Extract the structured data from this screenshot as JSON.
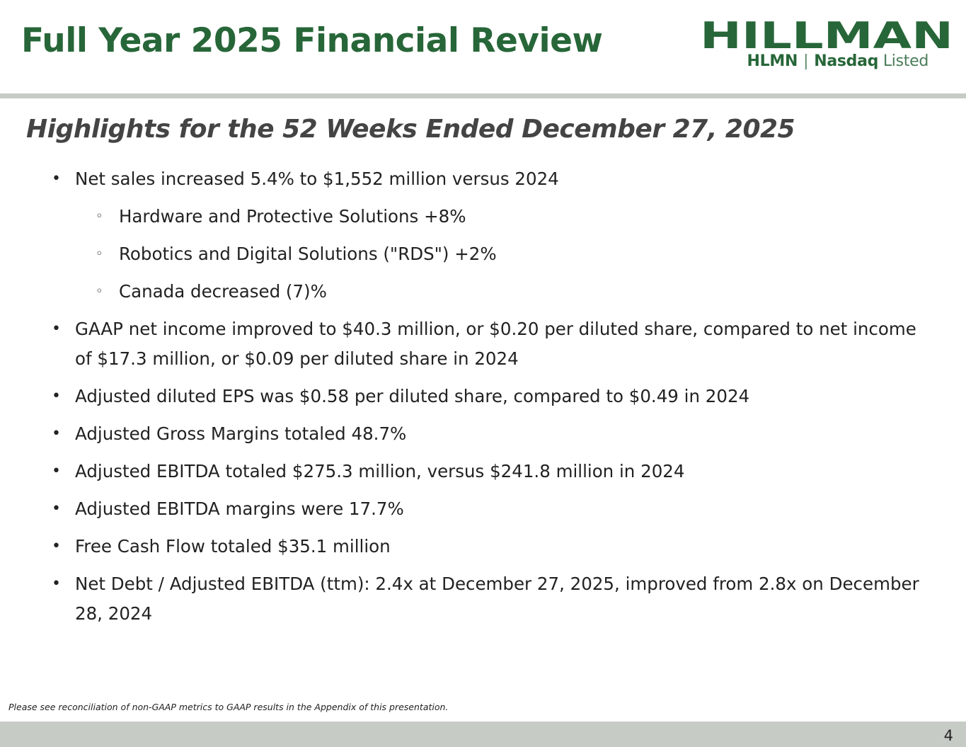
{
  "header": {
    "title": "Full Year 2025 Financial Review",
    "logo": {
      "wordmark": "HILLMAN",
      "ticker": "HLMN",
      "separator": "|",
      "exchange": "Nasdaq",
      "listed": "Listed",
      "color": "#276638"
    }
  },
  "subtitle": "Highlights for the 52 Weeks Ended December 27, 2025",
  "bullets": [
    {
      "level": 1,
      "text": "Net sales increased 5.4% to $1,552 million versus 2024"
    },
    {
      "level": 2,
      "text": "Hardware and Protective Solutions +8%"
    },
    {
      "level": 2,
      "text": "Robotics and Digital Solutions (\"RDS\") +2%"
    },
    {
      "level": 2,
      "text": "Canada decreased (7)%"
    },
    {
      "level": 1,
      "text": "GAAP net income improved to $40.3 million, or $0.20 per diluted share, compared to net income of $17.3 million, or $0.09 per diluted share in 2024"
    },
    {
      "level": 1,
      "text": "Adjusted diluted EPS was $0.58 per diluted share, compared to $0.49 in 2024"
    },
    {
      "level": 1,
      "text": "Adjusted Gross Margins totaled 48.7%"
    },
    {
      "level": 1,
      "text": "Adjusted EBITDA totaled $275.3 million, versus $241.8 million in 2024"
    },
    {
      "level": 1,
      "text": "Adjusted EBITDA margins were 17.7%"
    },
    {
      "level": 1,
      "text": "Free Cash Flow totaled $35.1 million"
    },
    {
      "level": 1,
      "text": "Net Debt / Adjusted EBITDA (ttm): 2.4x at December 27, 2025, improved from 2.8x on December 28, 2024"
    }
  ],
  "footnote": "Please see reconciliation of non-GAAP metrics to GAAP results in the Appendix of this presentation.",
  "page_number": "4",
  "colors": {
    "brand_green": "#276638",
    "subtitle_gray": "#444444",
    "rule_gray": "#c6ccc5"
  }
}
